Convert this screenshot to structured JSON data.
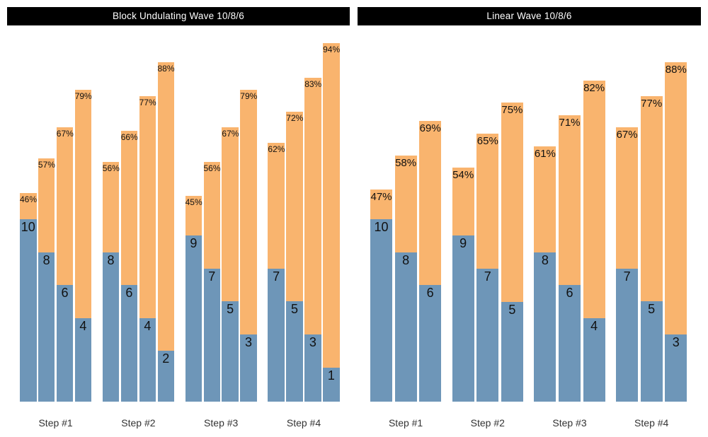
{
  "colors": {
    "bar_blue": "#6E96B8",
    "bar_orange": "#F9B46E",
    "title_bg": "#000000",
    "title_text": "#FFFFFF",
    "value_label": "#111111",
    "pct_label": "#111111",
    "category_label": "#333333",
    "background": "#FFFFFF"
  },
  "chart_data": [
    {
      "type": "bar",
      "variant": "grouped-stacked",
      "title": "Block Undulating Wave 10/8/6",
      "categories": [
        "Step #1",
        "Step #2",
        "Step #3",
        "Step #4"
      ],
      "legend_position": "none",
      "grid": false,
      "y_axis_visible": false,
      "label_style": "reps number inside top of blue segment, percent inside top of orange segment",
      "groups": [
        {
          "category": "Step #1",
          "bars": [
            {
              "reps": 10,
              "pct": 46
            },
            {
              "reps": 8,
              "pct": 57
            },
            {
              "reps": 6,
              "pct": 67
            },
            {
              "reps": 4,
              "pct": 79
            }
          ]
        },
        {
          "category": "Step #2",
          "bars": [
            {
              "reps": 8,
              "pct": 56
            },
            {
              "reps": 6,
              "pct": 66
            },
            {
              "reps": 4,
              "pct": 77
            },
            {
              "reps": 2,
              "pct": 88
            }
          ]
        },
        {
          "category": "Step #3",
          "bars": [
            {
              "reps": 9,
              "pct": 45
            },
            {
              "reps": 7,
              "pct": 56
            },
            {
              "reps": 5,
              "pct": 67
            },
            {
              "reps": 3,
              "pct": 79
            }
          ]
        },
        {
          "category": "Step #4",
          "bars": [
            {
              "reps": 7,
              "pct": 62
            },
            {
              "reps": 5,
              "pct": 72
            },
            {
              "reps": 3,
              "pct": 83
            },
            {
              "reps": 1,
              "pct": 94
            }
          ]
        }
      ]
    },
    {
      "type": "bar",
      "variant": "grouped-stacked",
      "title": "Linear Wave 10/8/6",
      "categories": [
        "Step #1",
        "Step #2",
        "Step #3",
        "Step #4"
      ],
      "legend_position": "none",
      "grid": false,
      "y_axis_visible": false,
      "label_style": "reps number inside top of blue segment, percent inside top of orange segment",
      "groups": [
        {
          "category": "Step #1",
          "bars": [
            {
              "reps": 10,
              "pct": 47
            },
            {
              "reps": 8,
              "pct": 58
            },
            {
              "reps": 6,
              "pct": 69
            }
          ]
        },
        {
          "category": "Step #2",
          "bars": [
            {
              "reps": 9,
              "pct": 54
            },
            {
              "reps": 7,
              "pct": 65
            },
            {
              "reps": 5,
              "pct": 75
            }
          ]
        },
        {
          "category": "Step #3",
          "bars": [
            {
              "reps": 8,
              "pct": 61
            },
            {
              "reps": 6,
              "pct": 71
            },
            {
              "reps": 4,
              "pct": 82
            }
          ]
        },
        {
          "category": "Step #4",
          "bars": [
            {
              "reps": 7,
              "pct": 67
            },
            {
              "reps": 5,
              "pct": 77
            },
            {
              "reps": 3,
              "pct": 88
            }
          ]
        }
      ]
    }
  ]
}
